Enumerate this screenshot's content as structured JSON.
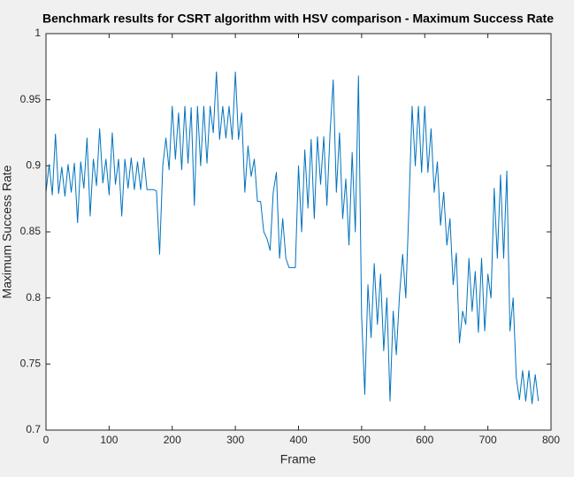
{
  "chart_data": {
    "type": "line",
    "title": "Benchmark results for CSRT algorithm with HSV comparison - Maximum Success Rate",
    "x_label": "Frame",
    "y_label": "Maximum Success Rate",
    "xlim": [
      0,
      800
    ],
    "xticks": [
      0,
      100,
      200,
      300,
      400,
      500,
      600,
      700,
      800
    ],
    "ylim": [
      0.7,
      1
    ],
    "yticks": [
      0.7,
      0.75,
      0.8,
      0.85,
      0.9,
      0.95,
      1
    ],
    "grid": false,
    "x": [
      0,
      5,
      10,
      15,
      20,
      25,
      30,
      35,
      40,
      45,
      50,
      55,
      60,
      65,
      70,
      75,
      80,
      85,
      90,
      95,
      100,
      105,
      110,
      115,
      120,
      125,
      130,
      135,
      140,
      145,
      150,
      155,
      160,
      165,
      170,
      175,
      180,
      185,
      190,
      195,
      200,
      205,
      210,
      215,
      220,
      225,
      230,
      235,
      240,
      245,
      250,
      255,
      260,
      265,
      270,
      275,
      280,
      285,
      290,
      295,
      300,
      305,
      310,
      315,
      320,
      325,
      330,
      335,
      340,
      345,
      350,
      355,
      360,
      365,
      370,
      375,
      380,
      385,
      390,
      395,
      400,
      405,
      410,
      415,
      420,
      425,
      430,
      435,
      440,
      445,
      450,
      455,
      460,
      465,
      470,
      475,
      480,
      485,
      490,
      495,
      500,
      505,
      510,
      515,
      520,
      525,
      530,
      535,
      540,
      545,
      550,
      555,
      560,
      565,
      570,
      575,
      580,
      585,
      590,
      595,
      600,
      605,
      610,
      615,
      620,
      625,
      630,
      635,
      640,
      645,
      650,
      655,
      660,
      665,
      670,
      675,
      680,
      685,
      690,
      695,
      700,
      705,
      710,
      715,
      720,
      725,
      730,
      735,
      740,
      745,
      750,
      755,
      760,
      765,
      770,
      775,
      780
    ],
    "series": [
      {
        "color": "#0072bd",
        "values": [
          0.88,
          0.901,
          0.878,
          0.924,
          0.879,
          0.899,
          0.877,
          0.901,
          0.88,
          0.902,
          0.857,
          0.903,
          0.883,
          0.921,
          0.862,
          0.905,
          0.885,
          0.928,
          0.887,
          0.905,
          0.878,
          0.925,
          0.886,
          0.905,
          0.862,
          0.905,
          0.883,
          0.906,
          0.882,
          0.903,
          0.882,
          0.906,
          0.882,
          0.882,
          0.882,
          0.881,
          0.833,
          0.9,
          0.921,
          0.897,
          0.945,
          0.905,
          0.94,
          0.897,
          0.945,
          0.902,
          0.944,
          0.87,
          0.945,
          0.9,
          0.945,
          0.902,
          0.945,
          0.925,
          0.971,
          0.92,
          0.945,
          0.921,
          0.945,
          0.92,
          0.971,
          0.92,
          0.94,
          0.88,
          0.915,
          0.892,
          0.905,
          0.873,
          0.873,
          0.85,
          0.845,
          0.836,
          0.88,
          0.895,
          0.83,
          0.86,
          0.83,
          0.823,
          0.823,
          0.823,
          0.9,
          0.85,
          0.912,
          0.868,
          0.92,
          0.86,
          0.922,
          0.886,
          0.922,
          0.87,
          0.925,
          0.965,
          0.88,
          0.925,
          0.86,
          0.89,
          0.84,
          0.91,
          0.85,
          0.968,
          0.786,
          0.727,
          0.81,
          0.77,
          0.826,
          0.78,
          0.818,
          0.76,
          0.8,
          0.722,
          0.79,
          0.757,
          0.802,
          0.833,
          0.8,
          0.87,
          0.945,
          0.9,
          0.945,
          0.895,
          0.945,
          0.895,
          0.928,
          0.88,
          0.903,
          0.855,
          0.88,
          0.84,
          0.86,
          0.81,
          0.834,
          0.766,
          0.79,
          0.78,
          0.83,
          0.79,
          0.82,
          0.774,
          0.83,
          0.775,
          0.818,
          0.8,
          0.883,
          0.83,
          0.893,
          0.83,
          0.896,
          0.775,
          0.8,
          0.74,
          0.723,
          0.745,
          0.722,
          0.745,
          0.72,
          0.742,
          0.722
        ]
      }
    ]
  }
}
